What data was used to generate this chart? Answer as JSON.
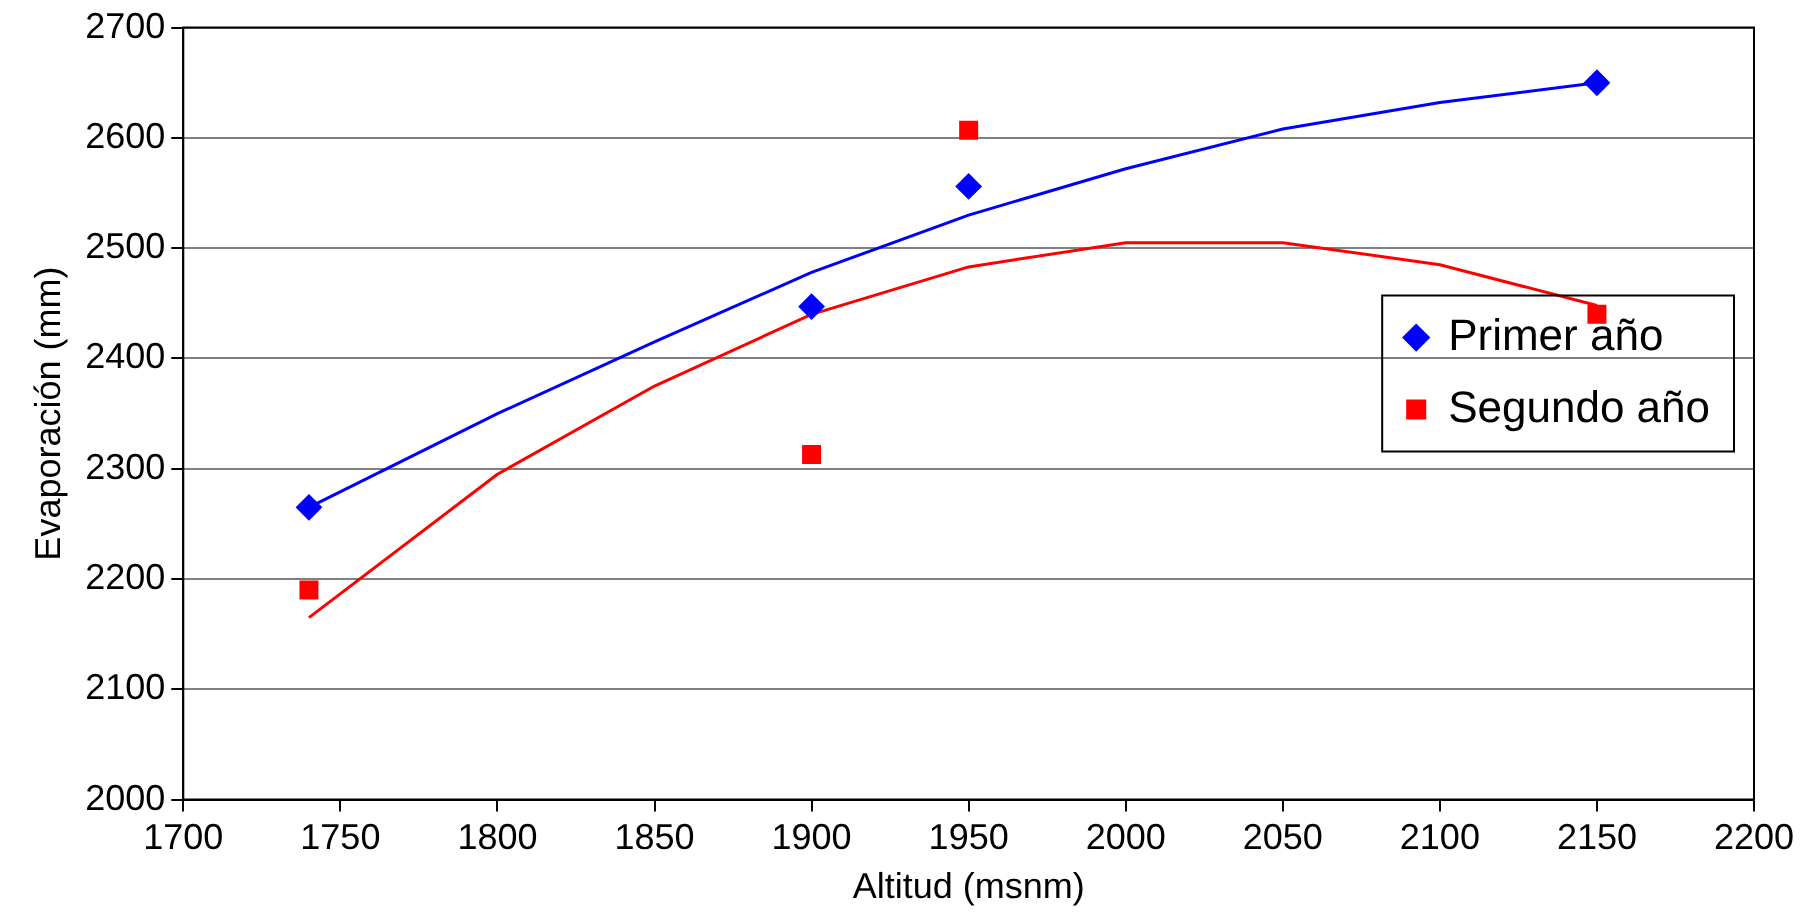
{
  "chart_data": {
    "type": "scatter",
    "xlabel": "Altitud (msnm)",
    "ylabel": "Evaporación (mm)",
    "xlim": [
      1700,
      2200
    ],
    "xticks": [
      1700,
      1750,
      1800,
      1850,
      1900,
      1950,
      2000,
      2050,
      2100,
      2150,
      2200
    ],
    "ylim": [
      2000,
      2700
    ],
    "yticks": [
      2000,
      2100,
      2200,
      2300,
      2400,
      2500,
      2600,
      2700
    ],
    "grid": "y",
    "legend": "right",
    "series": [
      {
        "name": "Primer año",
        "color": "#0000ff",
        "marker": "diamond",
        "x": [
          1740,
          1900,
          1950,
          2150
        ],
        "values": [
          2265,
          2447,
          2556,
          2650
        ]
      },
      {
        "name": "Segundo año",
        "color": "#ff0000",
        "marker": "square",
        "x": [
          1740,
          1900,
          1950,
          2150
        ],
        "values": [
          2190,
          2313,
          2607,
          2440
        ]
      },
      {
        "type": "line",
        "color": "#0000ff",
        "marker": "none",
        "x": [
          1740,
          1800,
          1850,
          1900,
          1950,
          2000,
          2050,
          2100,
          2150
        ],
        "values": [
          2265,
          2350,
          2415,
          2478,
          2530,
          2572,
          2608,
          2632,
          2650
        ]
      },
      {
        "type": "line",
        "color": "#ff0000",
        "marker": "none",
        "x": [
          1740,
          1800,
          1850,
          1900,
          1950,
          2000,
          2050,
          2100,
          2150
        ],
        "values": [
          2165,
          2295,
          2375,
          2440,
          2483,
          2505,
          2505,
          2485,
          2448
        ]
      }
    ]
  }
}
